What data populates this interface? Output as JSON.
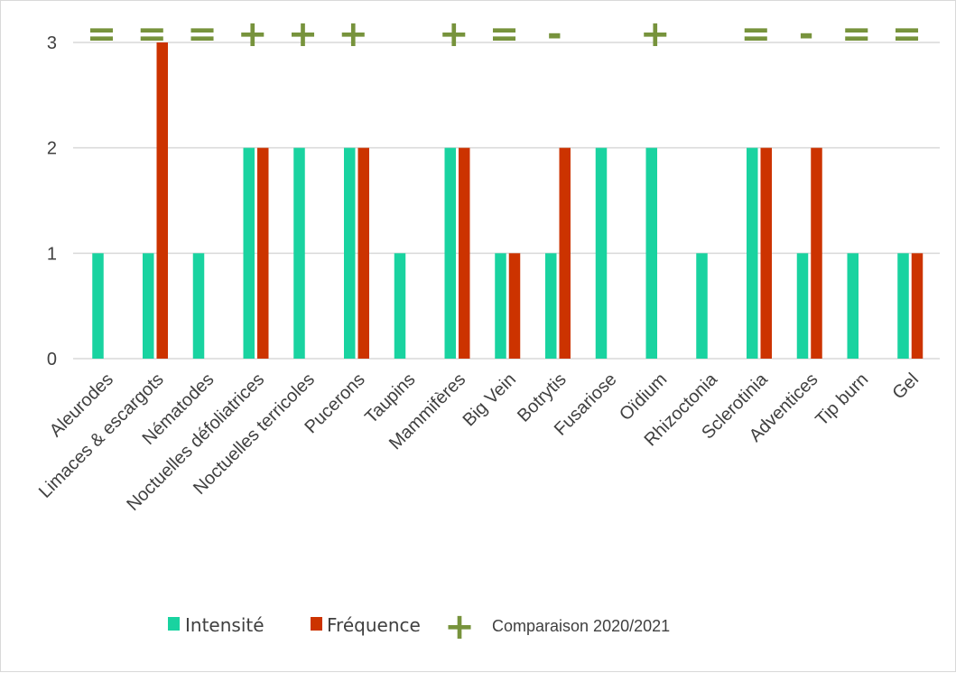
{
  "chart_data": {
    "type": "bar",
    "categories": [
      "Aleurodes",
      "Limaces & escargots",
      "Nématodes",
      "Noctuelles défoliatrices",
      "Noctuelles terricoles",
      "Pucerons",
      "Taupins",
      "Mammifères",
      "Big Vein",
      "Botrytis",
      "Fusariose",
      "Oïdium",
      "Rhizoctonia",
      "Sclerotinia",
      "Adventices",
      "Tip burn",
      "Gel"
    ],
    "series": [
      {
        "name": "Intensité",
        "color": "#19d3a0",
        "values": [
          1,
          1,
          1,
          2,
          2,
          2,
          1,
          2,
          1,
          1,
          2,
          2,
          1,
          2,
          1,
          1,
          1
        ]
      },
      {
        "name": "Fréquence",
        "color": "#cc3300",
        "values": [
          0,
          3,
          0,
          2,
          0,
          2,
          0,
          2,
          1,
          2,
          0,
          0,
          0,
          2,
          2,
          0,
          1
        ]
      }
    ],
    "comparison": [
      "=",
      "=",
      "=",
      "+",
      "+",
      "+",
      "",
      "+",
      "=",
      "-",
      "",
      "+",
      "",
      "=",
      "-",
      "=",
      "="
    ],
    "comparison_color": "#77933c",
    "ylim": [
      0,
      3
    ],
    "yticks": [
      0,
      1,
      2,
      3
    ],
    "grid": true,
    "legend_position": "bottom",
    "title": "",
    "xlabel": "",
    "ylabel": ""
  },
  "legend": {
    "intensite": "Intensité",
    "frequence": "Fréquence",
    "plus_symbol": "+",
    "comparison_label": "Comparaison 2020/2021"
  }
}
